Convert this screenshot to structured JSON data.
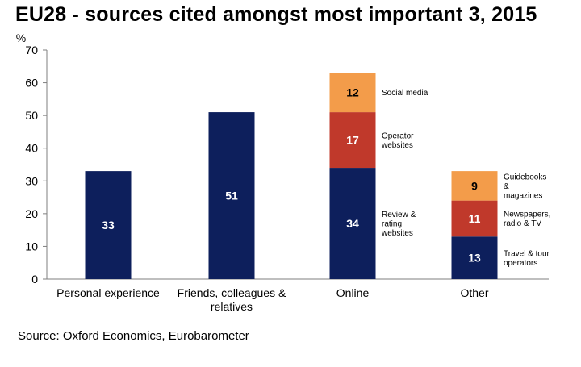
{
  "chart_data": {
    "type": "bar",
    "stacked": true,
    "title": "EU28 - sources cited amongst most important 3, 2015",
    "ylabel": "%",
    "xlabel": "",
    "ylim": [
      0,
      70
    ],
    "yticks": [
      0,
      10,
      20,
      30,
      40,
      50,
      60,
      70
    ],
    "grid": false,
    "legend": "none",
    "categories": [
      "Personal experience",
      "Friends, colleagues & relatives",
      "Online",
      "Other"
    ],
    "category_label_lines": [
      [
        "Personal experience"
      ],
      [
        "Friends, colleagues &",
        "relatives"
      ],
      [
        "Online"
      ],
      [
        "Other"
      ]
    ],
    "bars": [
      {
        "category": "Personal experience",
        "segments": [
          {
            "value": 33,
            "label": "33",
            "annotation": [],
            "color": "#0d1f5c"
          }
        ]
      },
      {
        "category": "Friends, colleagues & relatives",
        "segments": [
          {
            "value": 51,
            "label": "51",
            "annotation": [],
            "color": "#0d1f5c"
          }
        ]
      },
      {
        "category": "Online",
        "segments": [
          {
            "value": 34,
            "label": "34",
            "annotation": [
              "Review &",
              "rating",
              "websites"
            ],
            "color": "#0d1f5c"
          },
          {
            "value": 17,
            "label": "17",
            "annotation": [
              "Operator",
              "websites"
            ],
            "color": "#c0392b"
          },
          {
            "value": 12,
            "label": "12",
            "annotation": [
              "Social media"
            ],
            "color": "#f39c4a"
          }
        ]
      },
      {
        "category": "Other",
        "segments": [
          {
            "value": 13,
            "label": "13",
            "annotation": [
              "Travel & tour",
              "operators"
            ],
            "color": "#0d1f5c"
          },
          {
            "value": 11,
            "label": "11",
            "annotation": [
              "Newspapers,",
              "radio & TV"
            ],
            "color": "#c0392b"
          },
          {
            "value": 9,
            "label": "9",
            "annotation": [
              "Guidebooks",
              "&",
              "magazines"
            ],
            "color": "#f39c4a"
          }
        ]
      }
    ]
  },
  "source": "Source: Oxford Economics, Eurobarometer",
  "colors": {
    "navy": "#0d1f5c",
    "red": "#c0392b",
    "orange": "#f39c4a",
    "axis": "#7f7f7f"
  }
}
